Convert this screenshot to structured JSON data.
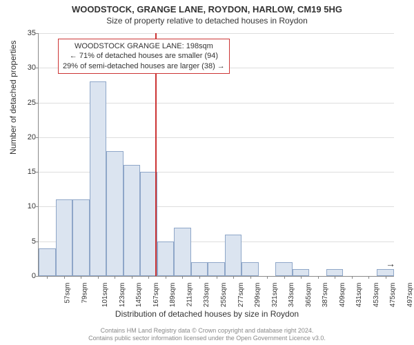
{
  "title": "WOODSTOCK, GRANGE LANE, ROYDON, HARLOW, CM19 5HG",
  "subtitle": "Size of property relative to detached houses in Roydon",
  "ylabel": "Number of detached properties",
  "xlabel": "Distribution of detached houses by size in Roydon",
  "footer_line1": "Contains HM Land Registry data © Crown copyright and database right 2024.",
  "footer_line2": "Contains public sector information licensed under the Open Government Licence v3.0.",
  "info_box": {
    "line1": "WOODSTOCK GRANGE LANE: 198sqm",
    "line2": "← 71% of detached houses are smaller (94)",
    "line3": "29% of semi-detached houses are larger (38) →"
  },
  "chart": {
    "type": "histogram",
    "ylim": [
      0,
      35
    ],
    "ytick_step": 5,
    "x_start": 57,
    "x_step": 22,
    "n_bins": 21,
    "bin_width_sqm": 22,
    "bar_color": "#dbe4f0",
    "bar_border_color": "#8ea6c8",
    "grid_color": "#dddddd",
    "ref_line_color": "#cc3333",
    "ref_value_sqm": 198,
    "values": [
      4,
      11,
      11,
      28,
      18,
      16,
      15,
      5,
      7,
      2,
      2,
      6,
      2,
      0,
      2,
      1,
      0,
      1,
      0,
      0,
      1
    ],
    "arrow_right": "→"
  }
}
